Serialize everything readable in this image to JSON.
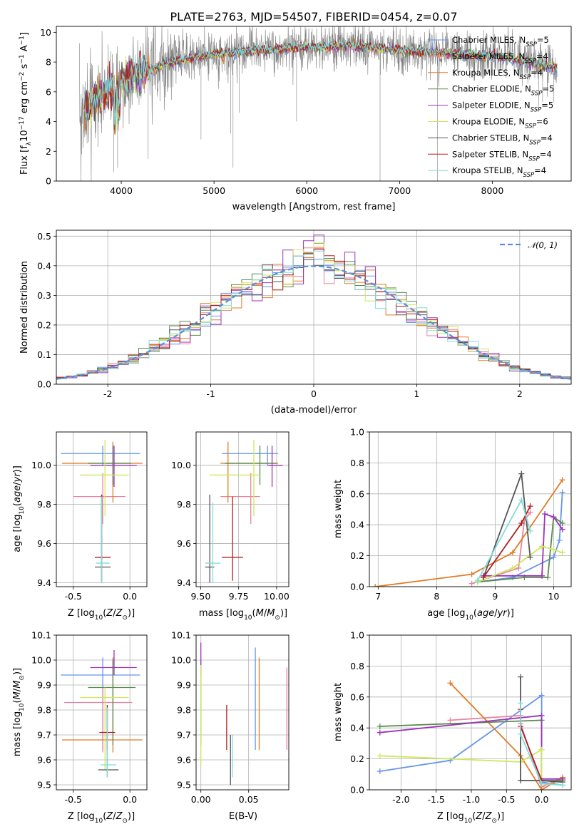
{
  "figure_title": "PLATE=2763, MJD=54507, FIBERID=0454, z=0.07",
  "colors": {
    "chabrier_miles": "#6495ed",
    "salpeter_miles": "#e9839e",
    "kroupa_miles": "#e07b24",
    "chabrier_elodie": "#5a8a4f",
    "salpeter_elodie": "#9a35b5",
    "kroupa_elodie": "#cde85a",
    "chabrier_stelib": "#555555",
    "salpeter_stelib": "#b21e1e",
    "kroupa_stelib": "#80dcdc",
    "data": "#808080",
    "normal": "#5b8fd8"
  },
  "chart_data": [
    {
      "id": "spectrum",
      "type": "line",
      "title": "PLATE=2763, MJD=54507, FIBERID=0454, z=0.07",
      "xlabel": "wavelength [Angstrom, rest frame]",
      "ylabel": "Flux [f_λ 10^-17 erg cm^-2 s^-1 A^-1]",
      "xlim": [
        3300,
        8850
      ],
      "ylim": [
        0,
        10.4
      ],
      "xticks": [
        4000,
        5000,
        6000,
        7000,
        8000
      ],
      "yticks": [
        0,
        2,
        4,
        6,
        8,
        10
      ],
      "legend_position": "right",
      "legend": [
        {
          "main": "Chabrier MILES, N",
          "sub": "SSP",
          "tail": "=5",
          "color_key": "chabrier_miles"
        },
        {
          "main": "Salpeter MILES, N",
          "sub": "SSP",
          "tail": "=4",
          "color_key": "salpeter_miles"
        },
        {
          "main": "Kroupa MILES, N",
          "sub": "SSP",
          "tail": "=4",
          "color_key": "kroupa_miles"
        },
        {
          "main": "Chabrier ELODIE, N",
          "sub": "SSP",
          "tail": "=5",
          "color_key": "chabrier_elodie"
        },
        {
          "main": "Salpeter ELODIE, N",
          "sub": "SSP",
          "tail": "=5",
          "color_key": "salpeter_elodie"
        },
        {
          "main": "Kroupa ELODIE, N",
          "sub": "SSP",
          "tail": "=6",
          "color_key": "kroupa_elodie"
        },
        {
          "main": "Chabrier STELIB, N",
          "sub": "SSP",
          "tail": "=4",
          "color_key": "chabrier_stelib"
        },
        {
          "main": "Salpeter STELIB, N",
          "sub": "SSP",
          "tail": "=4",
          "color_key": "salpeter_stelib"
        },
        {
          "main": "Kroupa STELIB, N",
          "sub": "SSP",
          "tail": "=4",
          "color_key": "kroupa_stelib"
        }
      ],
      "model_continuum": {
        "x": [
          3550,
          3600,
          3700,
          3800,
          3900,
          4000,
          4100,
          4200,
          4300,
          4400,
          4500,
          4700,
          5000,
          5500,
          6000,
          6500,
          7000,
          7500,
          8000,
          8400,
          8700
        ],
        "y": [
          4.2,
          4.8,
          5.4,
          5.8,
          6.1,
          6.6,
          7.0,
          7.2,
          7.4,
          7.7,
          7.9,
          8.2,
          8.5,
          8.8,
          9.0,
          9.1,
          8.8,
          8.6,
          8.4,
          8.0,
          7.6
        ]
      },
      "data_spikes_down": [
        [
          3920,
          0.6
        ],
        [
          3960,
          0.9
        ],
        [
          4290,
          1.5
        ],
        [
          4860,
          2.8
        ],
        [
          5180,
          3.2
        ],
        [
          5205,
          0.9
        ],
        [
          5270,
          4.6
        ],
        [
          5890,
          4.0
        ],
        [
          6790,
          0.0
        ],
        [
          7410,
          0.0
        ],
        [
          8500,
          5.0
        ],
        [
          8542,
          5.3
        ],
        [
          8660,
          5.3
        ]
      ]
    },
    {
      "id": "residuals",
      "type": "histogram",
      "xlabel": "(data-model)/error",
      "ylabel": "Normed distribution",
      "xlim": [
        -2.5,
        2.5
      ],
      "ylim": [
        0,
        0.52
      ],
      "xticks": [
        -2,
        -1,
        0,
        1,
        2
      ],
      "yticks": [
        0.0,
        0.1,
        0.2,
        0.3,
        0.4,
        0.5
      ],
      "legend": "𝒩(0, 1)",
      "legend_position": "upper right",
      "bin_width": 0.1
    },
    {
      "id": "age_vs_Z",
      "type": "errorbar",
      "xlabel": "Z [log10(Z/Z☉)]",
      "ylabel": "age [log10(age/yr)]",
      "xlim": [
        -0.65,
        0.15
      ],
      "ylim": [
        9.38,
        10.17
      ],
      "xticks": [
        -0.5,
        0.0
      ],
      "yticks": [
        9.4,
        9.6,
        9.8,
        10.0
      ],
      "points": [
        {
          "color_key": "chabrier_miles",
          "x": -0.24,
          "xerr": [
            0.37,
            0.33
          ],
          "y": 10.06,
          "yerr": [
            0.06,
            0.04
          ]
        },
        {
          "color_key": "salpeter_miles",
          "x": -0.24,
          "xerr": [
            0.26,
            0.2
          ],
          "y": 9.84,
          "yerr": [
            0.14,
            0.12
          ]
        },
        {
          "color_key": "kroupa_miles",
          "x": -0.15,
          "xerr": [
            0.45,
            0.26
          ],
          "y": 10.01,
          "yerr": [
            0.2,
            0.11
          ]
        },
        {
          "color_key": "chabrier_elodie",
          "x": -0.15,
          "xerr": [
            0.22,
            0.16
          ],
          "y": 10.01,
          "yerr": [
            0.11,
            0.09
          ]
        },
        {
          "color_key": "salpeter_elodie",
          "x": -0.14,
          "xerr": [
            0.21,
            0.2
          ],
          "y": 10.0,
          "yerr": [
            0.11,
            0.1
          ]
        },
        {
          "color_key": "kroupa_elodie",
          "x": -0.22,
          "xerr": [
            0.22,
            0.21
          ],
          "y": 9.95,
          "yerr": [
            0.21,
            0.18
          ]
        },
        {
          "color_key": "chabrier_stelib",
          "x": -0.25,
          "xerr": [
            0.06,
            0.08
          ],
          "y": 9.48,
          "yerr": [
            0.08,
            0.37
          ]
        },
        {
          "color_key": "salpeter_stelib",
          "x": -0.25,
          "xerr": [
            0.06,
            0.08
          ],
          "y": 9.53,
          "yerr": [
            0.12,
            0.32
          ]
        },
        {
          "color_key": "kroupa_stelib",
          "x": -0.25,
          "xerr": [
            0.05,
            0.07
          ],
          "y": 9.5,
          "yerr": [
            0.1,
            0.34
          ]
        }
      ]
    },
    {
      "id": "age_vs_mass",
      "type": "errorbar",
      "xlabel": "mass [log10(M/M☉)]",
      "ylabel": "",
      "xlim": [
        9.47,
        10.08
      ],
      "ylim": [
        9.38,
        10.17
      ],
      "xticks": [
        9.5,
        9.75,
        10.0
      ],
      "ytick_labels": [
        "9.4",
        "9.6",
        "9.8",
        "10.0"
      ],
      "yticks": [
        9.4,
        9.6,
        9.8,
        10.0
      ],
      "points": [
        {
          "color_key": "chabrier_miles",
          "x": 9.94,
          "xerr": [
            0.3,
            0.07
          ],
          "y": 10.06,
          "yerr": [
            0.06,
            0.04
          ]
        },
        {
          "color_key": "salpeter_miles",
          "x": 9.83,
          "xerr": [
            0.2,
            0.06
          ],
          "y": 9.84,
          "yerr": [
            0.14,
            0.12
          ]
        },
        {
          "color_key": "kroupa_miles",
          "x": 9.68,
          "xerr": [
            0.05,
            0.33
          ],
          "y": 10.01,
          "yerr": [
            0.2,
            0.11
          ]
        },
        {
          "color_key": "chabrier_elodie",
          "x": 9.89,
          "xerr": [
            0.23,
            0.11
          ],
          "y": 10.01,
          "yerr": [
            0.11,
            0.09
          ]
        },
        {
          "color_key": "salpeter_elodie",
          "x": 9.97,
          "xerr": [
            0.03,
            0.07
          ],
          "y": 10.0,
          "yerr": [
            0.11,
            0.1
          ]
        },
        {
          "color_key": "kroupa_elodie",
          "x": 9.85,
          "xerr": [
            0.29,
            0.04
          ],
          "y": 9.95,
          "yerr": [
            0.21,
            0.18
          ]
        },
        {
          "color_key": "chabrier_stelib",
          "x": 9.56,
          "xerr": [
            0.03,
            0.03
          ],
          "y": 9.48,
          "yerr": [
            0.08,
            0.37
          ]
        },
        {
          "color_key": "salpeter_stelib",
          "x": 9.71,
          "xerr": [
            0.07,
            0.07
          ],
          "y": 9.53,
          "yerr": [
            0.12,
            0.31
          ]
        },
        {
          "color_key": "kroupa_stelib",
          "x": 9.58,
          "xerr": [
            0.05,
            0.05
          ],
          "y": 9.5,
          "yerr": [
            0.1,
            0.31
          ]
        }
      ]
    },
    {
      "id": "mass_weight_vs_age",
      "type": "line",
      "xlabel": "age [log10(age/yr)]",
      "ylabel": "mass weight",
      "xlim": [
        6.85,
        10.3
      ],
      "ylim": [
        0,
        1.0
      ],
      "xticks": [
        7,
        8,
        9,
        10
      ],
      "yticks": [
        0.0,
        0.2,
        0.4,
        0.6,
        0.8,
        1.0
      ],
      "series": [
        {
          "color_key": "chabrier_miles",
          "x": [
            8.7,
            9.3,
            10.0,
            10.1,
            10.15
          ],
          "y": [
            0.03,
            0.06,
            0.19,
            0.3,
            0.61
          ]
        },
        {
          "color_key": "salpeter_miles",
          "x": [
            8.6,
            9.4,
            9.5,
            9.6
          ],
          "y": [
            0.02,
            0.12,
            0.43,
            0.48
          ]
        },
        {
          "color_key": "kroupa_miles",
          "x": [
            6.95,
            8.6,
            9.3,
            10.15
          ],
          "y": [
            0.0,
            0.08,
            0.22,
            0.69
          ]
        },
        {
          "color_key": "chabrier_elodie",
          "x": [
            8.7,
            9.5,
            9.9,
            10.0,
            10.15
          ],
          "y": [
            0.03,
            0.06,
            0.06,
            0.45,
            0.41
          ]
        },
        {
          "color_key": "salpeter_elodie",
          "x": [
            8.8,
            9.8,
            9.85,
            10.0,
            10.15
          ],
          "y": [
            0.07,
            0.07,
            0.47,
            0.45,
            0.37
          ]
        },
        {
          "color_key": "kroupa_elodie",
          "x": [
            8.7,
            9.3,
            9.8,
            10.0,
            10.15
          ],
          "y": [
            0.03,
            0.12,
            0.26,
            0.24,
            0.22
          ]
        },
        {
          "color_key": "chabrier_stelib",
          "x": [
            8.8,
            9.45,
            9.6
          ],
          "y": [
            0.06,
            0.73,
            0.19
          ]
        },
        {
          "color_key": "salpeter_stelib",
          "x": [
            8.8,
            9.45,
            9.6
          ],
          "y": [
            0.06,
            0.41,
            0.52
          ]
        },
        {
          "color_key": "kroupa_stelib",
          "x": [
            8.7,
            9.45,
            9.6
          ],
          "y": [
            0.04,
            0.56,
            0.36
          ]
        }
      ]
    },
    {
      "id": "mass_vs_Z",
      "type": "errorbar",
      "xlabel": "Z [log10(Z/Z☉)]",
      "ylabel": "mass [log10(M/M☉)]",
      "xlim": [
        -0.65,
        0.15
      ],
      "ylim": [
        9.48,
        10.1
      ],
      "xticks": [
        -0.5,
        0.0
      ],
      "yticks": [
        9.5,
        9.6,
        9.7,
        9.8,
        9.9,
        10.0,
        10.1
      ],
      "points": [
        {
          "color_key": "chabrier_miles",
          "x": -0.24,
          "xerr": [
            0.37,
            0.33
          ],
          "y": 9.94,
          "yerr": [
            0.3,
            0.07
          ]
        },
        {
          "color_key": "salpeter_miles",
          "x": -0.24,
          "xerr": [
            0.34,
            0.26
          ],
          "y": 9.83,
          "yerr": [
            0.2,
            0.06
          ]
        },
        {
          "color_key": "kroupa_miles",
          "x": -0.15,
          "xerr": [
            0.45,
            0.26
          ],
          "y": 9.68,
          "yerr": [
            0.05,
            0.33
          ]
        },
        {
          "color_key": "chabrier_elodie",
          "x": -0.15,
          "xerr": [
            0.22,
            0.2
          ],
          "y": 9.89,
          "yerr": [
            0.23,
            0.11
          ]
        },
        {
          "color_key": "salpeter_elodie",
          "x": -0.14,
          "xerr": [
            0.21,
            0.2
          ],
          "y": 9.97,
          "yerr": [
            0.03,
            0.07
          ]
        },
        {
          "color_key": "kroupa_elodie",
          "x": -0.22,
          "xerr": [
            0.22,
            0.21
          ],
          "y": 9.85,
          "yerr": [
            0.29,
            0.04
          ]
        },
        {
          "color_key": "chabrier_stelib",
          "x": -0.2,
          "xerr": [
            0.08,
            0.1
          ],
          "y": 9.56,
          "yerr": [
            0.03,
            0.26
          ]
        },
        {
          "color_key": "salpeter_stelib",
          "x": -0.2,
          "xerr": [
            0.07,
            0.07
          ],
          "y": 9.71,
          "yerr": [
            0.07,
            0.11
          ]
        },
        {
          "color_key": "kroupa_stelib",
          "x": -0.2,
          "xerr": [
            0.06,
            0.08
          ],
          "y": 9.58,
          "yerr": [
            0.05,
            0.23
          ]
        }
      ]
    },
    {
      "id": "mass_vs_ebv",
      "type": "errorbar",
      "xlabel": "E(B-V)",
      "ylabel": "",
      "xlim": [
        -0.005,
        0.092
      ],
      "ylim": [
        9.48,
        10.1
      ],
      "xticks": [
        0.0,
        0.05
      ],
      "yticks": [
        9.5,
        9.6,
        9.7,
        9.8,
        9.9,
        10.0,
        10.1
      ],
      "points": [
        {
          "color_key": "chabrier_miles",
          "x": 0.057,
          "y": 9.94,
          "yerr": [
            0.3,
            0.11
          ]
        },
        {
          "color_key": "salpeter_miles",
          "x": 0.09,
          "y": 9.83,
          "yerr": [
            0.19,
            0.14
          ]
        },
        {
          "color_key": "kroupa_miles",
          "x": 0.061,
          "y": 9.68,
          "yerr": [
            0.04,
            0.33
          ]
        },
        {
          "color_key": "chabrier_elodie",
          "x": 0.0,
          "y": 9.89,
          "yerr": [
            0.23,
            0.11
          ]
        },
        {
          "color_key": "salpeter_elodie",
          "x": 0.0,
          "y": 9.97,
          "yerr": [
            0.03,
            0.1
          ]
        },
        {
          "color_key": "kroupa_elodie",
          "x": 0.0,
          "y": 9.85,
          "yerr": [
            0.27,
            0.13
          ]
        },
        {
          "color_key": "chabrier_stelib",
          "x": 0.031,
          "y": 9.56,
          "yerr": [
            0.06,
            0.14
          ]
        },
        {
          "color_key": "salpeter_stelib",
          "x": 0.027,
          "y": 9.71,
          "yerr": [
            0.07,
            0.11
          ]
        },
        {
          "color_key": "kroupa_stelib",
          "x": 0.033,
          "y": 9.6,
          "yerr": [
            0.07,
            0.1
          ]
        }
      ]
    },
    {
      "id": "mass_weight_vs_Z",
      "type": "line",
      "xlabel": "Z [log10(Z/Z☉)]",
      "ylabel": "mass weight",
      "xlim": [
        -2.45,
        0.42
      ],
      "ylim": [
        0,
        1.0
      ],
      "xticks": [
        -2.0,
        -1.5,
        -1.0,
        -0.5,
        0.0
      ],
      "yticks": [
        0.0,
        0.2,
        0.4,
        0.6,
        0.8,
        1.0
      ],
      "series": [
        {
          "color_key": "chabrier_miles",
          "x": [
            -2.3,
            -1.3,
            0.0,
            0.0,
            0.3
          ],
          "y": [
            0.12,
            0.19,
            0.61,
            0.05,
            0.03
          ]
        },
        {
          "color_key": "salpeter_miles",
          "x": [
            -1.3,
            -0.3,
            -0.3,
            0.0,
            0.3
          ],
          "y": [
            0.45,
            0.48,
            0.43,
            0.02,
            0.08
          ]
        },
        {
          "color_key": "kroupa_miles",
          "x": [
            -1.3,
            -0.3,
            0.0,
            0.3
          ],
          "y": [
            0.69,
            0.22,
            0.0,
            0.08
          ]
        },
        {
          "color_key": "chabrier_elodie",
          "x": [
            -2.3,
            0.0,
            0.0,
            0.3
          ],
          "y": [
            0.41,
            0.45,
            0.06,
            0.06
          ]
        },
        {
          "color_key": "salpeter_elodie",
          "x": [
            -2.3,
            0.0,
            0.0,
            0.3
          ],
          "y": [
            0.37,
            0.48,
            0.07,
            0.07
          ]
        },
        {
          "color_key": "kroupa_elodie",
          "x": [
            -2.3,
            -0.3,
            0.0,
            0.0,
            0.3
          ],
          "y": [
            0.22,
            0.18,
            0.26,
            0.04,
            0.03
          ]
        },
        {
          "color_key": "chabrier_stelib",
          "x": [
            -0.3,
            -0.3,
            0.0,
            0.3
          ],
          "y": [
            0.73,
            0.06,
            0.06,
            0.05
          ]
        },
        {
          "color_key": "salpeter_stelib",
          "x": [
            -0.3,
            -0.3,
            0.0
          ],
          "y": [
            0.52,
            0.41,
            0.06
          ]
        },
        {
          "color_key": "kroupa_stelib",
          "x": [
            -0.3,
            -0.3,
            0.0,
            0.3
          ],
          "y": [
            0.56,
            0.36,
            0.04,
            0.03
          ]
        }
      ]
    }
  ]
}
